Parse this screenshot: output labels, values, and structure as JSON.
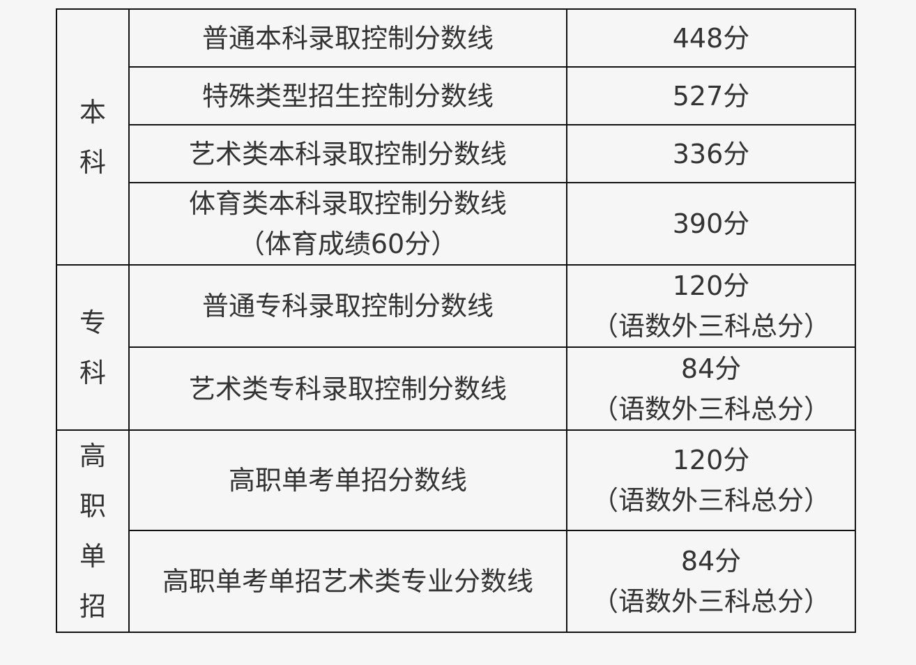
{
  "groups": [
    {
      "category": [
        "本",
        "科"
      ],
      "rows": [
        {
          "name": [
            "普通本科录取控制分数线"
          ],
          "score": [
            "448分"
          ]
        },
        {
          "name": [
            "特殊类型招生控制分数线"
          ],
          "score": [
            "527分"
          ]
        },
        {
          "name": [
            "艺术类本科录取控制分数线"
          ],
          "score": [
            "336分"
          ]
        },
        {
          "name": [
            "体育类本科录取控制分数线",
            "（体育成绩60分）"
          ],
          "score": [
            "390分"
          ]
        }
      ]
    },
    {
      "category": [
        "专",
        "科"
      ],
      "rows": [
        {
          "name": [
            "普通专科录取控制分数线"
          ],
          "score": [
            "120分",
            "（语数外三科总分）"
          ]
        },
        {
          "name": [
            "艺术类专科录取控制分数线"
          ],
          "score": [
            "84分",
            "（语数外三科总分）"
          ]
        }
      ]
    },
    {
      "category": [
        "高",
        "职",
        "单",
        "招"
      ],
      "rows": [
        {
          "name": [
            "高职单考单招分数线"
          ],
          "score": [
            "120分",
            "（语数外三科总分）"
          ]
        },
        {
          "name": [
            "高职单考单招艺术类专业分数线"
          ],
          "score": [
            "84分",
            "（语数外三科总分）"
          ]
        }
      ]
    }
  ]
}
